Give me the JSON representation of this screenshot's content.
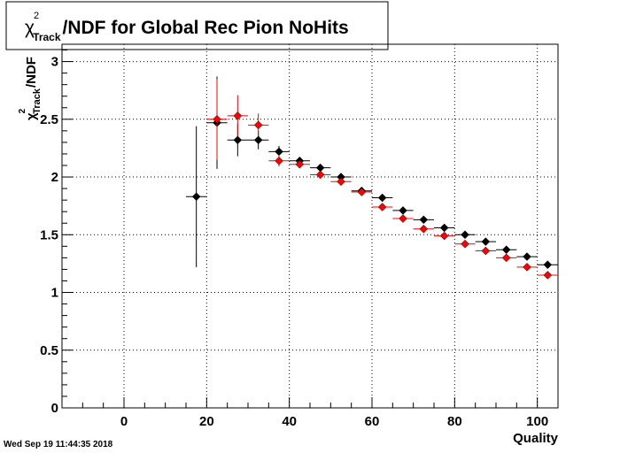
{
  "title": {
    "symbol": "χ",
    "superscript": "2",
    "subscript": "Track",
    "text": "/NDF for Global Rec Pion NoHits"
  },
  "footer": {
    "timestamp": "Wed Sep 19 11:44:35 2018"
  },
  "chart_data": {
    "type": "scatter",
    "xlabel": "Quality",
    "ylabel": {
      "symbol": "χ",
      "superscript": "2",
      "subscript": "Track",
      "text": "/NDF"
    },
    "xlim": [
      -15,
      105
    ],
    "ylim": [
      0,
      3.15
    ],
    "grid": true,
    "x_ticks": [
      0,
      20,
      40,
      60,
      80,
      100
    ],
    "x_tick_labels": [
      "0",
      "20",
      "40",
      "60",
      "80",
      "100"
    ],
    "y_ticks": [
      0,
      0.5,
      1,
      1.5,
      2,
      2.5,
      3
    ],
    "y_tick_labels": [
      "0",
      "0.5",
      "1",
      "1.5",
      "2",
      "2.5",
      "3"
    ],
    "series": [
      {
        "color": "#000000",
        "x": [
          17.5,
          22.5,
          27.5,
          32.5,
          37.5,
          42.5,
          47.5,
          52.5,
          57.5,
          62.5,
          67.5,
          72.5,
          77.5,
          82.5,
          87.5,
          92.5,
          97.5,
          102.5
        ],
        "y": [
          1.83,
          2.47,
          2.32,
          2.32,
          2.22,
          2.14,
          2.08,
          2.0,
          1.88,
          1.82,
          1.71,
          1.63,
          1.56,
          1.5,
          1.44,
          1.37,
          1.31,
          1.24
        ],
        "y_err": [
          0.61,
          0.4,
          0.14,
          0.08,
          0.05,
          0.03,
          0.03,
          0.02,
          0.02,
          0.02,
          0.02,
          0.02,
          0.02,
          0.02,
          0.02,
          0.02,
          0.02,
          0.02
        ],
        "x_err": 2.5
      },
      {
        "color": "#ff0000",
        "x": [
          22.5,
          27.5,
          32.5,
          37.5,
          42.5,
          47.5,
          52.5,
          57.5,
          62.5,
          67.5,
          72.5,
          77.5,
          82.5,
          87.5,
          92.5,
          97.5,
          102.5
        ],
        "y": [
          2.5,
          2.53,
          2.45,
          2.14,
          2.11,
          2.02,
          1.96,
          1.87,
          1.74,
          1.64,
          1.55,
          1.49,
          1.42,
          1.36,
          1.3,
          1.22,
          1.15
        ],
        "y_err": [
          0.35,
          0.18,
          0.1,
          0.05,
          0.03,
          0.03,
          0.02,
          0.02,
          0.02,
          0.02,
          0.02,
          0.02,
          0.02,
          0.02,
          0.02,
          0.02,
          0.02
        ],
        "x_err": 2.5
      }
    ]
  }
}
